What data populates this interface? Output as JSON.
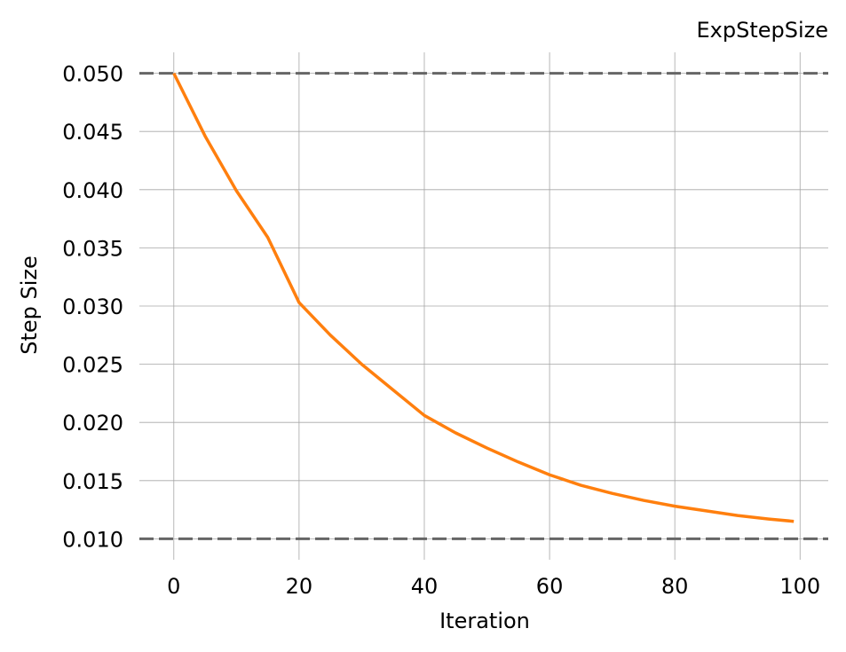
{
  "chart_data": {
    "type": "line",
    "title": "ExpStepSize",
    "xlabel": "Iteration",
    "ylabel": "Step Size",
    "xlim": [
      -5.5,
      104.5
    ],
    "ylim": [
      0.0082,
      0.0518
    ],
    "xticks": [
      0,
      20,
      40,
      60,
      80,
      100
    ],
    "xtick_labels": [
      "0",
      "20",
      "40",
      "60",
      "80",
      "100"
    ],
    "yticks": [
      0.01,
      0.015,
      0.02,
      0.025,
      0.03,
      0.035,
      0.04,
      0.045,
      0.05
    ],
    "ytick_labels": [
      "0.010",
      "0.015",
      "0.020",
      "0.025",
      "0.030",
      "0.035",
      "0.040",
      "0.045",
      "0.050"
    ],
    "grid": true,
    "reference_lines": [
      {
        "y": 0.05,
        "style": "dashed",
        "color": "#666666"
      },
      {
        "y": 0.01,
        "style": "dashed",
        "color": "#666666"
      }
    ],
    "series": [
      {
        "color": "#ff7f0e",
        "x": [
          0,
          5,
          10,
          15,
          20,
          25,
          30,
          35,
          40,
          45,
          50,
          55,
          60,
          65,
          70,
          75,
          80,
          85,
          90,
          95,
          99
        ],
        "y": [
          0.05,
          0.0446,
          0.0399,
          0.0359,
          0.0303,
          0.0275,
          0.025,
          0.0228,
          0.0206,
          0.0191,
          0.0178,
          0.0166,
          0.0155,
          0.0146,
          0.0139,
          0.0133,
          0.0128,
          0.0124,
          0.012,
          0.0117,
          0.0115
        ]
      }
    ]
  }
}
